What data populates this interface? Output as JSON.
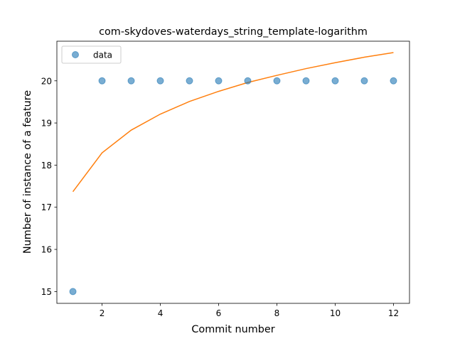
{
  "chart_data": {
    "type": "scatter",
    "title": "com-skydoves-waterdays_string_template-logarithm",
    "xlabel": "Commit number",
    "ylabel": "Number of instance of a feature",
    "xlim": [
      0.45,
      12.55
    ],
    "ylim": [
      14.72,
      20.94
    ],
    "x_ticks": [
      2,
      4,
      6,
      8,
      10,
      12
    ],
    "y_ticks": [
      15,
      16,
      17,
      18,
      19,
      20
    ],
    "grid": false,
    "legend_placement": "upper-left",
    "series": [
      {
        "name": "data",
        "kind": "scatter",
        "color": "#1f77b4",
        "x": [
          1,
          2,
          3,
          4,
          5,
          6,
          7,
          8,
          9,
          10,
          11,
          12
        ],
        "y": [
          15,
          20,
          20,
          20,
          20,
          20,
          20,
          20,
          20,
          20,
          20,
          20
        ]
      },
      {
        "kind": "line",
        "color": "#ff7f0e",
        "x": [
          1,
          2,
          3,
          4,
          5,
          6,
          7,
          8,
          9,
          10,
          11,
          12
        ],
        "y": [
          17.37,
          18.29,
          18.83,
          19.21,
          19.51,
          19.75,
          19.96,
          20.13,
          20.29,
          20.43,
          20.56,
          20.67
        ]
      }
    ]
  }
}
